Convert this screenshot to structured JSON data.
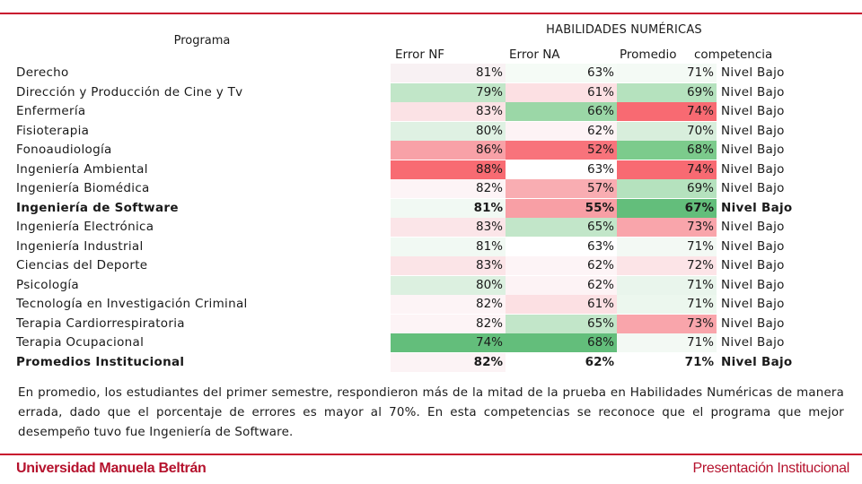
{
  "slide": {
    "title": "HABILIDADES NUMÉRICAS",
    "program_header": "Programa",
    "columns": [
      "Error NF",
      "Error NA",
      "Promedio",
      "competencia"
    ],
    "paragraph": "En promedio, los estudiantes del primer semestre, respondieron más de la mitad de la prueba en Habilidades Numéricas de manera errada, dado que el porcentaje de errores es mayor al 70%. En esta competencias se reconoce que el programa que mejor desempeño tuvo fue Ingeniería de Software.",
    "footer_left": "Universidad Manuela Beltrán",
    "footer_right": "Presentación Institucional"
  },
  "rows": [
    {
      "program": "Derecho",
      "nf": "81%",
      "na": "63%",
      "prom": "71%",
      "comp": "Nivel Bajo",
      "nf_color": "#f8f1f3",
      "na_color": "#f5fbf6",
      "prom_color": "#f4faf5",
      "bold": false
    },
    {
      "program": "Dirección y Producción de Cine y Tv",
      "nf": "79%",
      "na": "61%",
      "prom": "69%",
      "comp": "Nivel Bajo",
      "nf_color": "#c1e6c8",
      "na_color": "#fce0e3",
      "prom_color": "#b5e2be",
      "bold": false
    },
    {
      "program": "Enfermería",
      "nf": "83%",
      "na": "66%",
      "prom": "74%",
      "comp": "Nivel Bajo",
      "nf_color": "#fbe2e5",
      "na_color": "#9bd7a7",
      "prom_color": "#f86a72",
      "bold": false
    },
    {
      "program": "Fisioterapia",
      "nf": "80%",
      "na": "62%",
      "prom": "70%",
      "comp": "Nivel Bajo",
      "nf_color": "#dff1e3",
      "na_color": "#fdf3f5",
      "prom_color": "#d8eedc",
      "bold": false
    },
    {
      "program": "Fonoaudiología",
      "nf": "86%",
      "na": "52%",
      "prom": "68%",
      "comp": "Nivel Bajo",
      "nf_color": "#f8a1a7",
      "na_color": "#f8737b",
      "prom_color": "#7ccb8c",
      "bold": false
    },
    {
      "program": "Ingeniería Ambiental",
      "nf": "88%",
      "na": "63%",
      "prom": "74%",
      "comp": "Nivel Bajo",
      "nf_color": "#f86b72",
      "na_color": "#ffffff",
      "prom_color": "#f86a72",
      "bold": false
    },
    {
      "program": "Ingeniería Biomédica",
      "nf": "82%",
      "na": "57%",
      "prom": "69%",
      "comp": "Nivel Bajo",
      "nf_color": "#fdf4f6",
      "na_color": "#f9adb2",
      "prom_color": "#b5e2be",
      "bold": false
    },
    {
      "program": "Ingeniería de Software",
      "nf": "81%",
      "na": "55%",
      "prom": "67%",
      "comp": "Nivel Bajo",
      "nf_color": "#f1f9f3",
      "na_color": "#f89fa5",
      "prom_color": "#63be7b",
      "bold": true
    },
    {
      "program": "Ingeniería Electrónica",
      "nf": "83%",
      "na": "65%",
      "prom": "73%",
      "comp": "Nivel Bajo",
      "nf_color": "#fbe5e8",
      "na_color": "#c2e6c9",
      "prom_color": "#f9a5ab",
      "bold": false
    },
    {
      "program": "Ingeniería Industrial",
      "nf": "81%",
      "na": "63%",
      "prom": "71%",
      "comp": "Nivel Bajo",
      "nf_color": "#f1f9f3",
      "na_color": "#ffffff",
      "prom_color": "#f3f9f4",
      "bold": false
    },
    {
      "program": "Ciencias del Deporte",
      "nf": "83%",
      "na": "62%",
      "prom": "72%",
      "comp": "Nivel Bajo",
      "nf_color": "#fbe4e7",
      "na_color": "#fdf4f6",
      "prom_color": "#fce4e7",
      "bold": false
    },
    {
      "program": "Psicología",
      "nf": "80%",
      "na": "62%",
      "prom": "71%",
      "comp": "Nivel Bajo",
      "nf_color": "#dcf0e0",
      "na_color": "#fdf3f5",
      "prom_color": "#e9f5ec",
      "bold": false
    },
    {
      "program": "Tecnología en Investigación Criminal",
      "nf": "82%",
      "na": "61%",
      "prom": "71%",
      "comp": "Nivel Bajo",
      "nf_color": "#fdf4f6",
      "na_color": "#fce0e3",
      "prom_color": "#ecf7ee",
      "bold": false
    },
    {
      "program": "Terapia Cardiorrespiratoria",
      "nf": "82%",
      "na": "65%",
      "prom": "73%",
      "comp": "Nivel Bajo",
      "nf_color": "#fdf4f6",
      "na_color": "#c2e6c9",
      "prom_color": "#f9a5ab",
      "bold": false
    },
    {
      "program": "Terapia Ocupacional",
      "nf": "74%",
      "na": "68%",
      "prom": "71%",
      "comp": "Nivel Bajo",
      "nf_color": "#63be7b",
      "na_color": "#63be7b",
      "prom_color": "#f3f9f4",
      "bold": false
    },
    {
      "program": "Promedios Institucional",
      "nf": "82%",
      "na": "62%",
      "prom": "71%",
      "comp": "Nivel Bajo",
      "nf_color": "#fcf3f5",
      "na_color": "#ffffff",
      "prom_color": "#ffffff",
      "bold": true
    }
  ]
}
